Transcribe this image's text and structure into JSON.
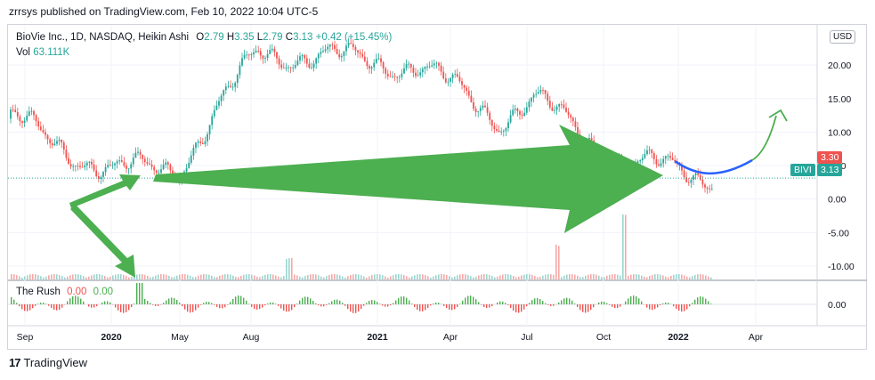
{
  "publisher_line": "zrrsys published on TradingView.com, Feb 10, 2022 10:04 UTC-5",
  "legend": {
    "symbol": "BioVie Inc., 1D, NASDAQ, Heikin Ashi",
    "o_label": "O",
    "o": "2.79",
    "h_label": "H",
    "h": "3.35",
    "l_label": "L",
    "l": "2.79",
    "c_label": "C",
    "c": "3.13",
    "change": "+0.42 (+15.45%)",
    "vol_label": "Vol",
    "vol": "63.111K"
  },
  "indicator": {
    "name": "The Rush",
    "v1": "0.00",
    "v2": "0.00"
  },
  "currency_button": "USD",
  "price_tags": {
    "ticker": "BIVI",
    "last": "3.13",
    "prev": "3.30"
  },
  "footer_brand": "TradingView",
  "colors": {
    "up": "#26a69a",
    "down": "#ef5350",
    "arrow": "#4caf50",
    "curve": "#2962ff"
  },
  "chart_data": [
    {
      "type": "candlestick",
      "title": "BioVie Inc., 1D, NASDAQ, Heikin Ashi",
      "x_ticks": [
        "Sep",
        "2020",
        "May",
        "Aug",
        "2021",
        "Apr",
        "Jul",
        "Oct",
        "2022",
        "Apr"
      ],
      "y_ticks": [
        "20.00",
        "15.00",
        "10.00",
        "5.00",
        "0.00",
        "-5.00",
        "-10.00"
      ],
      "ylim": [
        -12,
        26
      ],
      "series": [
        {
          "name": "price",
          "x": [
            "Sep",
            "2020",
            "May",
            "Aug",
            "2021",
            "Apr",
            "Jul",
            "Oct",
            "2022"
          ],
          "values": [
            12,
            4,
            5,
            22,
            20,
            12,
            15,
            6,
            3.13
          ]
        }
      ],
      "annotations": [
        "green arrows",
        "blue forecast curve"
      ]
    },
    {
      "type": "bar",
      "title": "The Rush",
      "y_ticks": [
        "0.00"
      ],
      "values": [
        0,
        -1,
        2,
        0,
        -2,
        1,
        0,
        -1,
        3,
        -2,
        0
      ]
    }
  ]
}
